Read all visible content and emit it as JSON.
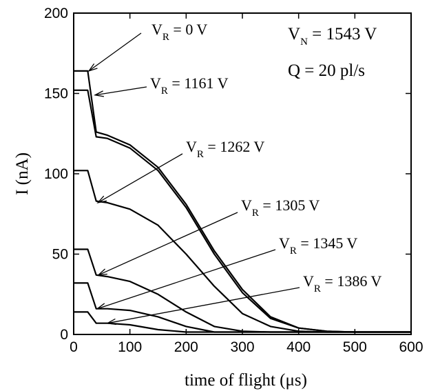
{
  "chart_data": {
    "type": "line",
    "title": "",
    "xlabel": "time of flight (μs)",
    "ylabel": "I (nA)",
    "xlim": [
      0,
      600
    ],
    "ylim": [
      0,
      200
    ],
    "xticks": [
      0,
      100,
      200,
      300,
      400,
      500,
      600
    ],
    "yticks": [
      0,
      50,
      100,
      150,
      200
    ],
    "grid": false,
    "legend": "none",
    "annotations": [
      {
        "main": "V",
        "sub": "N",
        "rest": " = 1543 V"
      },
      {
        "main": "Q = 20 pl/s"
      }
    ],
    "series": [
      {
        "label_main": "V",
        "label_sub": "R",
        "label_rest": " = 0 V",
        "points": [
          [
            0,
            164
          ],
          [
            25,
            164
          ],
          [
            40,
            126
          ],
          [
            60,
            124
          ],
          [
            100,
            118
          ],
          [
            150,
            104
          ],
          [
            200,
            81
          ],
          [
            250,
            52
          ],
          [
            300,
            28
          ],
          [
            350,
            11
          ],
          [
            400,
            4
          ],
          [
            450,
            2
          ],
          [
            500,
            1.5
          ],
          [
            600,
            1.5
          ]
        ]
      },
      {
        "label_main": "V",
        "label_sub": "R",
        "label_rest": " = 1161 V",
        "points": [
          [
            0,
            152
          ],
          [
            25,
            152
          ],
          [
            40,
            123
          ],
          [
            60,
            122
          ],
          [
            100,
            116
          ],
          [
            150,
            102
          ],
          [
            200,
            79
          ],
          [
            250,
            50
          ],
          [
            300,
            26
          ],
          [
            350,
            10
          ],
          [
            400,
            4
          ],
          [
            450,
            2
          ],
          [
            500,
            1.5
          ],
          [
            600,
            1.5
          ]
        ]
      },
      {
        "label_main": "V",
        "label_sub": "R",
        "label_rest": " = 1262 V",
        "points": [
          [
            0,
            102
          ],
          [
            25,
            102
          ],
          [
            40,
            83
          ],
          [
            60,
            82
          ],
          [
            100,
            78
          ],
          [
            150,
            68
          ],
          [
            200,
            50
          ],
          [
            250,
            30
          ],
          [
            300,
            13
          ],
          [
            350,
            5
          ],
          [
            400,
            2
          ],
          [
            450,
            1.5
          ],
          [
            600,
            1.5
          ]
        ]
      },
      {
        "label_main": "V",
        "label_sub": "R",
        "label_rest": " = 1305 V",
        "points": [
          [
            0,
            53
          ],
          [
            25,
            53
          ],
          [
            40,
            37
          ],
          [
            60,
            36
          ],
          [
            100,
            33
          ],
          [
            150,
            25
          ],
          [
            200,
            14
          ],
          [
            250,
            5
          ],
          [
            300,
            2
          ],
          [
            350,
            1.5
          ],
          [
            600,
            1.5
          ]
        ]
      },
      {
        "label_main": "V",
        "label_sub": "R",
        "label_rest": " = 1345 V",
        "points": [
          [
            0,
            32
          ],
          [
            25,
            32
          ],
          [
            40,
            16
          ],
          [
            60,
            16
          ],
          [
            100,
            15
          ],
          [
            150,
            11
          ],
          [
            200,
            5
          ],
          [
            250,
            1.5
          ],
          [
            600,
            1.5
          ]
        ]
      },
      {
        "label_main": "V",
        "label_sub": "R",
        "label_rest": " = 1386 V",
        "points": [
          [
            0,
            14
          ],
          [
            25,
            14
          ],
          [
            40,
            7
          ],
          [
            60,
            7
          ],
          [
            100,
            6
          ],
          [
            150,
            3
          ],
          [
            200,
            1.5
          ],
          [
            600,
            1.5
          ]
        ]
      }
    ]
  }
}
